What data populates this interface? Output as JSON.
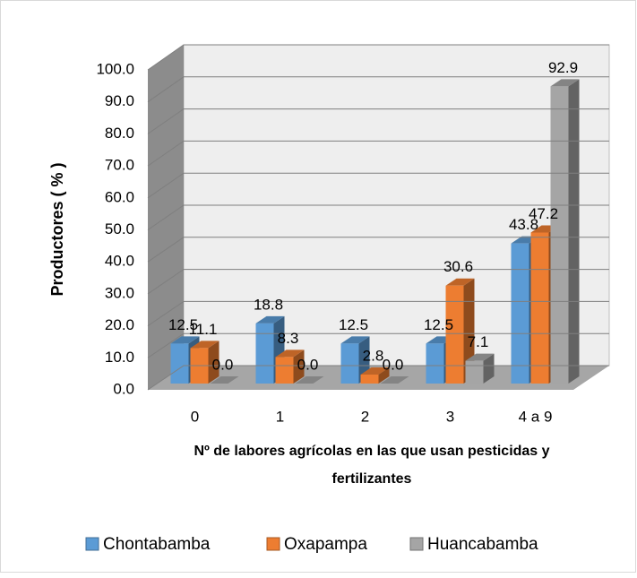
{
  "chart_data": {
    "type": "bar3d",
    "xlabel": "Nº de labores agrícolas en las que usan pesticidas y fertilizantes",
    "ylabel": "Productores ( % )",
    "categories": [
      "0",
      "1",
      "2",
      "3",
      "4 a 9"
    ],
    "series": [
      {
        "name": "Chontabamba",
        "color": "#5b9bd5",
        "values": [
          12.5,
          18.8,
          12.5,
          12.5,
          43.8
        ],
        "value_labels": [
          "12.5",
          "18.8",
          "12.5",
          "12.5",
          "43.8"
        ]
      },
      {
        "name": "Oxapampa",
        "color": "#ed7d31",
        "values": [
          11.1,
          8.3,
          2.8,
          30.6,
          47.2
        ],
        "value_labels": [
          "11.1",
          "8.3",
          "2.8",
          "30.6",
          "47.2"
        ]
      },
      {
        "name": "Huancabamba",
        "color": "#a5a5a5",
        "values": [
          0.0,
          0.0,
          0.0,
          7.1,
          92.9
        ],
        "value_labels": [
          "0.0",
          "0.0",
          "0.0",
          "7.1",
          "92.9"
        ]
      }
    ],
    "ylim": [
      0,
      100
    ],
    "yticks": [
      {
        "value": 0,
        "label": "0.0"
      },
      {
        "value": 10,
        "label": "10.0"
      },
      {
        "value": 20,
        "label": "20.0"
      },
      {
        "value": 30,
        "label": "30.0"
      },
      {
        "value": 40,
        "label": "40.0"
      },
      {
        "value": 50,
        "label": "50.0"
      },
      {
        "value": 60,
        "label": "60.0"
      },
      {
        "value": 70,
        "label": "70.0"
      },
      {
        "value": 80,
        "label": "80.0"
      },
      {
        "value": 90,
        "label": "90.0"
      },
      {
        "value": 100,
        "label": "100.0"
      }
    ],
    "grid": true,
    "legend": "bottom"
  }
}
